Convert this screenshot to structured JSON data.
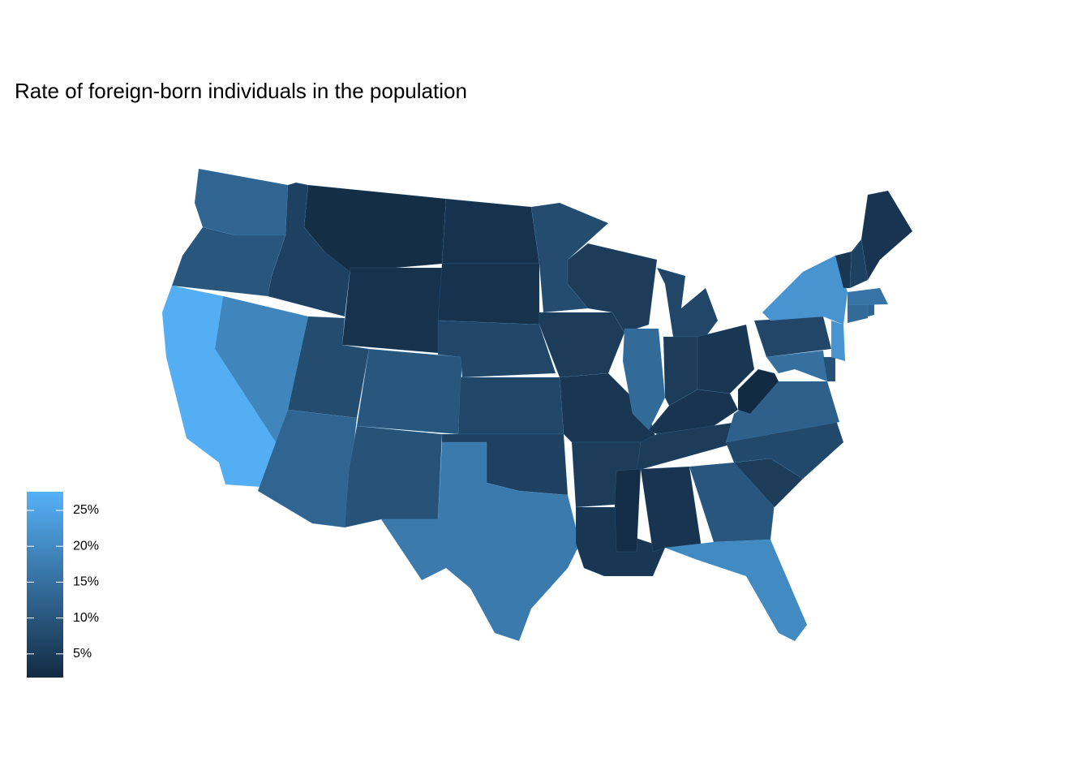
{
  "chart_data": {
    "type": "choropleth",
    "title": "Rate of foreign-born individuals in the population",
    "values": [
      13,
      10,
      27,
      19,
      6,
      2.2,
      3,
      8,
      13,
      10,
      9.5,
      3,
      3,
      7,
      7,
      6,
      17,
      8,
      5,
      4,
      5,
      4,
      5,
      14,
      7,
      5,
      4,
      3.5,
      5,
      2.3,
      3.5,
      10,
      20,
      5,
      7.5,
      12,
      1.5,
      7,
      15,
      9,
      22,
      22,
      14,
      13,
      16,
      4,
      6,
      3.5
    ],
    "low_color": "#132B43",
    "high_color": "#56B1F7",
    "colorbar": {
      "limits": [
        1.7,
        27.6
      ],
      "ticks": [
        {
          "value": 5,
          "label": "5%"
        },
        {
          "value": 10,
          "label": "10%"
        },
        {
          "value": 15,
          "label": "15%"
        },
        {
          "value": 20,
          "label": "20%"
        },
        {
          "value": 25,
          "label": "25%"
        }
      ]
    }
  }
}
